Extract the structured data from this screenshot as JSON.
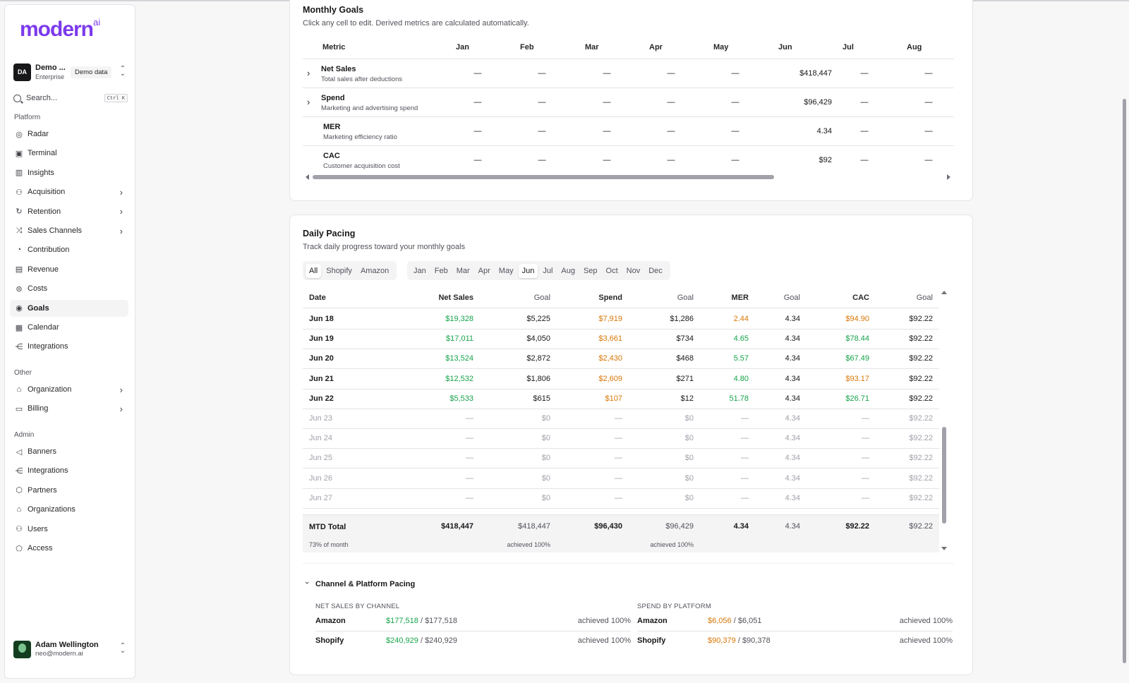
{
  "brand": {
    "logo": "modern",
    "logo_sup": "ai"
  },
  "org": {
    "initials": "DA",
    "name": "Demo ...",
    "plan": "Enterprise",
    "badge": "Demo data"
  },
  "search": {
    "placeholder": "Search...",
    "shortcut": "Ctrl K"
  },
  "sidebar": {
    "platform_label": "Platform",
    "platform": [
      {
        "label": "Radar",
        "icon": "radar-icon",
        "glyph": "◎"
      },
      {
        "label": "Terminal",
        "icon": "terminal-icon",
        "glyph": "▣"
      },
      {
        "label": "Insights",
        "icon": "bar-chart-icon",
        "glyph": "▥"
      },
      {
        "label": "Acquisition",
        "icon": "user-plus-icon",
        "glyph": "⚇",
        "chevron": true
      },
      {
        "label": "Retention",
        "icon": "refresh-icon",
        "glyph": "↻",
        "chevron": true
      },
      {
        "label": "Sales Channels",
        "icon": "shuffle-icon",
        "glyph": "⤨",
        "chevron": true
      },
      {
        "label": "Contribution",
        "icon": "pie-chart-icon",
        "glyph": "◔"
      },
      {
        "label": "Revenue",
        "icon": "receipt-icon",
        "glyph": "▤"
      },
      {
        "label": "Costs",
        "icon": "coins-icon",
        "glyph": "⊜"
      },
      {
        "label": "Goals",
        "icon": "target-icon",
        "glyph": "◉",
        "active": true
      },
      {
        "label": "Calendar",
        "icon": "calendar-icon",
        "glyph": "▦"
      },
      {
        "label": "Integrations",
        "icon": "share-icon",
        "glyph": "⋲"
      }
    ],
    "other_label": "Other",
    "other": [
      {
        "label": "Organization",
        "icon": "building-icon",
        "glyph": "⌂",
        "chevron": true
      },
      {
        "label": "Billing",
        "icon": "credit-card-icon",
        "glyph": "▭",
        "chevron": true
      }
    ],
    "admin_label": "Admin",
    "admin": [
      {
        "label": "Banners",
        "icon": "megaphone-icon",
        "glyph": "◁"
      },
      {
        "label": "Integrations",
        "icon": "share-icon",
        "glyph": "⋲"
      },
      {
        "label": "Partners",
        "icon": "handshake-icon",
        "glyph": "⬡"
      },
      {
        "label": "Organizations",
        "icon": "building-icon",
        "glyph": "⌂"
      },
      {
        "label": "Users",
        "icon": "users-icon",
        "glyph": "⚇"
      },
      {
        "label": "Access",
        "icon": "shield-icon",
        "glyph": "⬠"
      }
    ]
  },
  "user": {
    "name": "Adam Wellington",
    "email": "neo@modern.ai"
  },
  "monthly_goals": {
    "title": "Monthly Goals",
    "subtitle": "Click any cell to edit. Derived metrics are calculated automatically.",
    "metric_header": "Metric",
    "months": [
      "Jan",
      "Feb",
      "Mar",
      "Apr",
      "May",
      "Jun",
      "Jul",
      "Aug"
    ],
    "rows": [
      {
        "name": "Net Sales",
        "desc": "Total sales after deductions",
        "expandable": true,
        "values": [
          "—",
          "—",
          "—",
          "—",
          "—",
          "$418,447",
          "—",
          "—"
        ]
      },
      {
        "name": "Spend",
        "desc": "Marketing and advertising spend",
        "expandable": true,
        "values": [
          "—",
          "—",
          "—",
          "—",
          "—",
          "$96,429",
          "—",
          "—"
        ]
      },
      {
        "name": "MER",
        "desc": "Marketing efficiency ratio",
        "expandable": false,
        "values": [
          "—",
          "—",
          "—",
          "—",
          "—",
          "4.34",
          "—",
          "—"
        ]
      },
      {
        "name": "CAC",
        "desc": "Customer acquisition cost",
        "expandable": false,
        "values": [
          "—",
          "—",
          "—",
          "—",
          "—",
          "$92",
          "—",
          "—"
        ]
      }
    ]
  },
  "daily_pacing": {
    "title": "Daily Pacing",
    "subtitle": "Track daily progress toward your monthly goals",
    "channels": [
      "All",
      "Shopify",
      "Amazon"
    ],
    "active_channel": "All",
    "months": [
      "Jan",
      "Feb",
      "Mar",
      "Apr",
      "May",
      "Jun",
      "Jul",
      "Aug",
      "Sep",
      "Oct",
      "Nov",
      "Dec"
    ],
    "active_month": "Jun",
    "headers": [
      "Date",
      "Net Sales",
      "Goal",
      "Spend",
      "Goal",
      "MER",
      "Goal",
      "CAC",
      "Goal"
    ],
    "rows": [
      {
        "date": "Jun 18",
        "net_sales": "$19,328",
        "ns_goal": "$5,225",
        "spend": "$7,919",
        "sp_goal": "$1,286",
        "mer": "2.44",
        "mer_goal": "4.34",
        "cac": "$94.90",
        "cac_goal": "$92.22",
        "mer_color": "orange",
        "cac_color": "orange"
      },
      {
        "date": "Jun 19",
        "net_sales": "$17,011",
        "ns_goal": "$4,050",
        "spend": "$3,661",
        "sp_goal": "$734",
        "mer": "4.65",
        "mer_goal": "4.34",
        "cac": "$78.44",
        "cac_goal": "$92.22",
        "mer_color": "green",
        "cac_color": "green"
      },
      {
        "date": "Jun 20",
        "net_sales": "$13,524",
        "ns_goal": "$2,872",
        "spend": "$2,430",
        "sp_goal": "$468",
        "mer": "5.57",
        "mer_goal": "4.34",
        "cac": "$67.49",
        "cac_goal": "$92.22",
        "mer_color": "green",
        "cac_color": "green"
      },
      {
        "date": "Jun 21",
        "net_sales": "$12,532",
        "ns_goal": "$1,806",
        "spend": "$2,609",
        "sp_goal": "$271",
        "mer": "4.80",
        "mer_goal": "4.34",
        "cac": "$93.17",
        "cac_goal": "$92.22",
        "mer_color": "green",
        "cac_color": "orange"
      },
      {
        "date": "Jun 22",
        "net_sales": "$5,533",
        "ns_goal": "$615",
        "spend": "$107",
        "sp_goal": "$12",
        "mer": "51.78",
        "mer_goal": "4.34",
        "cac": "$26.71",
        "cac_goal": "$92.22",
        "mer_color": "green",
        "cac_color": "green"
      },
      {
        "date": "Jun 23",
        "net_sales": "—",
        "ns_goal": "$0",
        "spend": "—",
        "sp_goal": "$0",
        "mer": "—",
        "mer_goal": "4.34",
        "cac": "—",
        "cac_goal": "$92.22",
        "future": true
      },
      {
        "date": "Jun 24",
        "net_sales": "—",
        "ns_goal": "$0",
        "spend": "—",
        "sp_goal": "$0",
        "mer": "—",
        "mer_goal": "4.34",
        "cac": "—",
        "cac_goal": "$92.22",
        "future": true
      },
      {
        "date": "Jun 25",
        "net_sales": "—",
        "ns_goal": "$0",
        "spend": "—",
        "sp_goal": "$0",
        "mer": "—",
        "mer_goal": "4.34",
        "cac": "—",
        "cac_goal": "$92.22",
        "future": true
      },
      {
        "date": "Jun 26",
        "net_sales": "—",
        "ns_goal": "$0",
        "spend": "—",
        "sp_goal": "$0",
        "mer": "—",
        "mer_goal": "4.34",
        "cac": "—",
        "cac_goal": "$92.22",
        "future": true
      },
      {
        "date": "Jun 27",
        "net_sales": "—",
        "ns_goal": "$0",
        "spend": "—",
        "sp_goal": "$0",
        "mer": "—",
        "mer_goal": "4.34",
        "cac": "—",
        "cac_goal": "$92.22",
        "future": true
      }
    ],
    "total": {
      "label": "MTD Total",
      "net_sales": "$418,447",
      "ns_goal": "$418,447",
      "spend": "$96,430",
      "sp_goal": "$96,429",
      "mer": "4.34",
      "mer_goal": "4.34",
      "cac": "$92.22",
      "cac_goal": "$92.22",
      "month_progress": "73% of month",
      "ns_achieved": "achieved 100%",
      "sp_achieved": "achieved 100%"
    }
  },
  "channel_pacing": {
    "title": "Channel & Platform Pacing",
    "net_sales_label": "NET SALES BY CHANNEL",
    "spend_label": "SPEND BY PLATFORM",
    "net_sales": [
      {
        "name": "Amazon",
        "actual": "$177,518",
        "goal": "/ $177,518",
        "achieved": "achieved 100%"
      },
      {
        "name": "Shopify",
        "actual": "$240,929",
        "goal": "/ $240,929",
        "achieved": "achieved 100%"
      }
    ],
    "spend": [
      {
        "name": "Amazon",
        "actual": "$6,056",
        "goal": "/ $6,051",
        "achieved": "achieved 100%"
      },
      {
        "name": "Shopify",
        "actual": "$90,379",
        "goal": "/ $90,378",
        "achieved": "achieved 100%"
      }
    ]
  },
  "colors": {
    "brand": "#7c3aed",
    "positive": "#16a34a",
    "warning": "#d97706"
  }
}
